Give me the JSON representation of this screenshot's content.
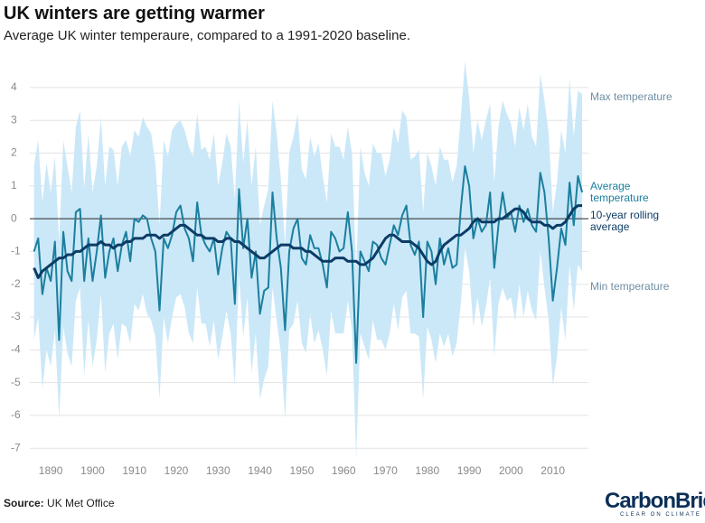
{
  "chart_data": {
    "type": "line",
    "title": "UK winters are getting warmer",
    "subtitle": "Average UK winter temperaure, compared to a 1991-2020 baseline.",
    "source_label": "Source:",
    "source": "UK Met Office",
    "logo": "CarbonBrief",
    "logo_tagline": "CLEAR ON CLIMATE",
    "fill_between": true,
    "grid": true,
    "xlim": [
      1885,
      2018.5
    ],
    "xticks": [
      1890,
      1900,
      1910,
      1920,
      1930,
      1940,
      1950,
      1960,
      1970,
      1980,
      1990,
      2000,
      2010
    ],
    "ylim": [
      -7.6,
      4.3
    ],
    "yticks": [
      -7,
      -6,
      -5,
      -4,
      -3,
      -2,
      -1,
      0,
      1,
      2,
      3,
      4
    ],
    "x": [
      1886,
      1887,
      1888,
      1889,
      1890,
      1891,
      1892,
      1893,
      1894,
      1895,
      1896,
      1897,
      1898,
      1899,
      1900,
      1901,
      1902,
      1903,
      1904,
      1905,
      1906,
      1907,
      1908,
      1909,
      1910,
      1911,
      1912,
      1913,
      1914,
      1915,
      1916,
      1917,
      1918,
      1919,
      1920,
      1921,
      1922,
      1923,
      1924,
      1925,
      1926,
      1927,
      1928,
      1929,
      1930,
      1931,
      1932,
      1933,
      1934,
      1935,
      1936,
      1937,
      1938,
      1939,
      1940,
      1941,
      1942,
      1943,
      1944,
      1945,
      1946,
      1947,
      1948,
      1949,
      1950,
      1951,
      1952,
      1953,
      1954,
      1955,
      1956,
      1957,
      1958,
      1959,
      1960,
      1961,
      1962,
      1963,
      1964,
      1965,
      1966,
      1967,
      1968,
      1969,
      1970,
      1971,
      1972,
      1973,
      1974,
      1975,
      1976,
      1977,
      1978,
      1979,
      1980,
      1981,
      1982,
      1983,
      1984,
      1985,
      1986,
      1987,
      1988,
      1989,
      1990,
      1991,
      1992,
      1993,
      1994,
      1995,
      1996,
      1997,
      1998,
      1999,
      2000,
      2001,
      2002,
      2003,
      2004,
      2005,
      2006,
      2007,
      2008,
      2009,
      2010,
      2011,
      2012,
      2013,
      2014,
      2015,
      2016,
      2017
    ],
    "series": [
      {
        "name": "Max temperature",
        "color": "#cbe8f8",
        "values": [
          1.6,
          2.4,
          0.5,
          1.7,
          0.8,
          1.9,
          -0.7,
          2.4,
          1.6,
          0.8,
          2.8,
          3.3,
          0.9,
          2.6,
          0.8,
          1.6,
          3.1,
          1.0,
          2.2,
          2.1,
          1.0,
          2.2,
          2.4,
          1.9,
          2.7,
          2.5,
          3.1,
          2.8,
          2.6,
          1.7,
          -0.2,
          2.4,
          1.9,
          2.7,
          2.9,
          3.0,
          2.7,
          2.2,
          1.9,
          3.2,
          2.1,
          2.2,
          1.8,
          2.6,
          1.0,
          1.7,
          2.6,
          2.2,
          0.6,
          3.6,
          1.7,
          3.0,
          1.0,
          2.2,
          -0.2,
          0.4,
          0.9,
          3.6,
          2.6,
          1.2,
          -0.8,
          2.0,
          2.5,
          3.2,
          1.5,
          1.2,
          2.5,
          1.9,
          2.3,
          1.3,
          0.5,
          2.6,
          2.2,
          2.2,
          1.8,
          2.8,
          2.0,
          -1.6,
          2.2,
          1.4,
          1.0,
          2.3,
          2.0,
          2.0,
          1.3,
          1.8,
          2.8,
          2.3,
          3.3,
          3.1,
          1.8,
          1.9,
          2.1,
          0.2,
          2.0,
          1.6,
          1.0,
          2.2,
          1.8,
          1.8,
          1.1,
          1.6,
          3.1,
          4.8,
          3.7,
          2.0,
          3.0,
          2.4,
          3.0,
          3.5,
          1.1,
          2.8,
          3.6,
          3.2,
          2.9,
          2.2,
          3.4,
          2.7,
          3.5,
          2.5,
          2.2,
          4.4,
          3.6,
          2.6,
          0.2,
          1.1,
          2.7,
          2.0,
          4.3,
          2.5,
          3.9,
          3.8
        ]
      },
      {
        "name": "Min temperature",
        "color": "#cbe8f8",
        "values": [
          -3.7,
          -3.0,
          -5.2,
          -4.0,
          -4.5,
          -3.4,
          -6.1,
          -3.3,
          -4.1,
          -4.5,
          -2.5,
          -2.1,
          -4.8,
          -3.1,
          -4.5,
          -3.7,
          -2.3,
          -4.7,
          -3.5,
          -3.2,
          -4.3,
          -3.2,
          -3.3,
          -3.8,
          -2.6,
          -2.8,
          -2.3,
          -2.9,
          -3.1,
          -3.6,
          -5.5,
          -3.0,
          -3.8,
          -3.0,
          -2.4,
          -2.3,
          -2.7,
          -3.5,
          -3.8,
          -2.1,
          -3.2,
          -3.2,
          -3.9,
          -3.1,
          -4.3,
          -3.6,
          -2.8,
          -3.5,
          -5.1,
          -1.7,
          -3.6,
          -2.4,
          -4.7,
          -3.5,
          -5.5,
          -4.9,
          -4.5,
          -2.1,
          -3.1,
          -4.1,
          -6.1,
          -3.4,
          -3.2,
          -2.5,
          -3.8,
          -4.1,
          -2.9,
          -3.8,
          -3.4,
          -4.0,
          -4.8,
          -2.8,
          -3.5,
          -3.5,
          -3.5,
          -2.5,
          -3.4,
          -7.3,
          -3.5,
          -3.9,
          -4.3,
          -3.1,
          -3.7,
          -3.7,
          -4.0,
          -3.5,
          -2.6,
          -3.4,
          -2.4,
          -2.2,
          -3.5,
          -3.5,
          -3.6,
          -5.5,
          -3.3,
          -3.7,
          -4.4,
          -3.5,
          -3.9,
          -3.5,
          -4.2,
          -3.8,
          -2.6,
          -0.9,
          -1.6,
          -3.3,
          -2.4,
          -3.3,
          -2.7,
          -1.8,
          -4.2,
          -2.6,
          -2.1,
          -2.5,
          -2.4,
          -3.1,
          -2.0,
          -3.0,
          -2.2,
          -2.8,
          -3.1,
          -1.0,
          -2.1,
          -3.1,
          -5.1,
          -4.2,
          -2.7,
          -3.7,
          -1.4,
          -2.8,
          -1.4,
          -1.6
        ]
      },
      {
        "name": "Average temperature",
        "color": "#1b7f9e",
        "values": [
          -1.0,
          -0.6,
          -2.3,
          -1.5,
          -1.9,
          -0.7,
          -3.7,
          -0.4,
          -1.6,
          -1.9,
          0.2,
          0.3,
          -1.9,
          -0.6,
          -1.9,
          -1.0,
          0.1,
          -1.8,
          -1.0,
          -0.6,
          -1.6,
          -0.8,
          -0.4,
          -1.3,
          0.0,
          -0.1,
          0.1,
          0.0,
          -0.6,
          -1.0,
          -2.8,
          -0.6,
          -0.9,
          -0.5,
          0.2,
          0.4,
          -0.3,
          -0.6,
          -1.3,
          0.5,
          -0.5,
          -0.8,
          -1.0,
          -0.6,
          -1.7,
          -0.9,
          -0.4,
          -0.6,
          -2.6,
          0.9,
          -0.9,
          0.0,
          -1.8,
          -1.0,
          -2.9,
          -2.2,
          -2.1,
          0.8,
          -0.6,
          -1.5,
          -3.4,
          -1.0,
          -0.3,
          0.0,
          -1.2,
          -1.4,
          -0.5,
          -0.9,
          -0.9,
          -1.4,
          -2.1,
          -0.4,
          -0.6,
          -1.0,
          -0.9,
          0.2,
          -1.0,
          -4.4,
          -1.0,
          -1.3,
          -1.6,
          -0.7,
          -0.8,
          -1.2,
          -1.4,
          -0.8,
          -0.2,
          -0.5,
          0.1,
          0.4,
          -0.8,
          -1.1,
          -0.7,
          -3.0,
          -0.7,
          -1.0,
          -2.0,
          -0.6,
          -1.4,
          -0.9,
          -1.5,
          -1.4,
          0.3,
          1.6,
          1.0,
          -0.6,
          0.0,
          -0.4,
          -0.2,
          0.8,
          -1.5,
          -0.2,
          0.8,
          0.0,
          0.2,
          -0.4,
          0.4,
          -0.1,
          0.3,
          -0.2,
          -0.4,
          1.4,
          0.8,
          -0.6,
          -2.5,
          -1.5,
          -0.3,
          -0.8,
          1.1,
          -0.2,
          1.3,
          0.8
        ]
      },
      {
        "name": "10-year rolling average",
        "color": "#0c3c66",
        "values": [
          -1.5,
          -1.8,
          -1.6,
          -1.5,
          -1.4,
          -1.3,
          -1.2,
          -1.2,
          -1.1,
          -1.1,
          -1.0,
          -1.0,
          -0.9,
          -0.8,
          -0.8,
          -0.8,
          -0.7,
          -0.8,
          -0.8,
          -0.9,
          -0.8,
          -0.8,
          -0.7,
          -0.7,
          -0.6,
          -0.6,
          -0.6,
          -0.5,
          -0.5,
          -0.5,
          -0.6,
          -0.5,
          -0.5,
          -0.4,
          -0.3,
          -0.2,
          -0.2,
          -0.3,
          -0.4,
          -0.5,
          -0.5,
          -0.6,
          -0.6,
          -0.6,
          -0.7,
          -0.7,
          -0.6,
          -0.6,
          -0.7,
          -0.7,
          -0.8,
          -0.9,
          -1.0,
          -1.1,
          -1.2,
          -1.2,
          -1.1,
          -1.0,
          -0.9,
          -0.8,
          -0.8,
          -0.8,
          -0.9,
          -0.9,
          -0.9,
          -1.0,
          -1.0,
          -1.1,
          -1.2,
          -1.3,
          -1.3,
          -1.3,
          -1.2,
          -1.2,
          -1.2,
          -1.3,
          -1.3,
          -1.3,
          -1.4,
          -1.4,
          -1.3,
          -1.2,
          -1.0,
          -0.8,
          -0.6,
          -0.5,
          -0.5,
          -0.6,
          -0.7,
          -0.7,
          -0.7,
          -0.8,
          -0.9,
          -1.1,
          -1.3,
          -1.4,
          -1.3,
          -1.0,
          -0.8,
          -0.7,
          -0.6,
          -0.5,
          -0.5,
          -0.4,
          -0.3,
          -0.1,
          0.0,
          -0.1,
          -0.1,
          -0.1,
          -0.1,
          0.0,
          0.0,
          0.1,
          0.2,
          0.3,
          0.3,
          0.2,
          0.0,
          -0.1,
          -0.1,
          -0.1,
          -0.2,
          -0.2,
          -0.3,
          -0.2,
          -0.2,
          -0.1,
          0.1,
          0.3,
          0.4,
          0.4
        ]
      }
    ]
  }
}
